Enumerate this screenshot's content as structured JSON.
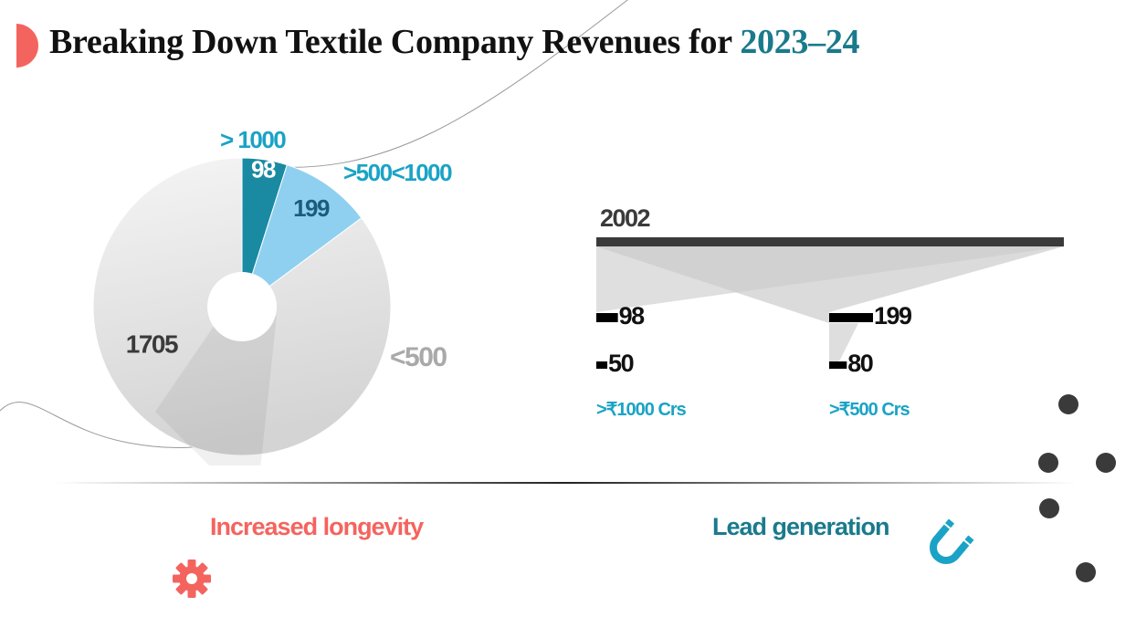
{
  "title": {
    "main": "Breaking Down Textile Company Revenues for ",
    "year": "2023–24"
  },
  "colors": {
    "accent_red": "#f4645f",
    "teal": "#1a7a8c",
    "cyan": "#1aa3c6",
    "dark_gray": "#3a3a3a",
    "light_gray": "#d9d9d9"
  },
  "chart_data": [
    {
      "type": "pie",
      "categories": [
        "> 1000",
        ">500<1000",
        "<500"
      ],
      "values": [
        98,
        199,
        1705
      ],
      "slice_labels": [
        "98",
        "199",
        "1705"
      ],
      "legend_labels": [
        "> 1000",
        ">500<1000",
        "<500"
      ]
    },
    {
      "type": "bar",
      "total": {
        "label": "2002",
        "value": 2002
      },
      "categories": [
        ">₹1000 Crs",
        ">₹500 Crs"
      ],
      "series": [
        {
          "values": [
            98,
            199
          ],
          "labels": [
            "98",
            "199"
          ]
        },
        {
          "values": [
            50,
            80
          ],
          "labels": [
            "50",
            "80"
          ]
        }
      ]
    }
  ],
  "highlights": [
    {
      "label": "Increased longevity",
      "icon": "gear-icon"
    },
    {
      "label": "Lead generation",
      "icon": "magnet-icon"
    }
  ]
}
